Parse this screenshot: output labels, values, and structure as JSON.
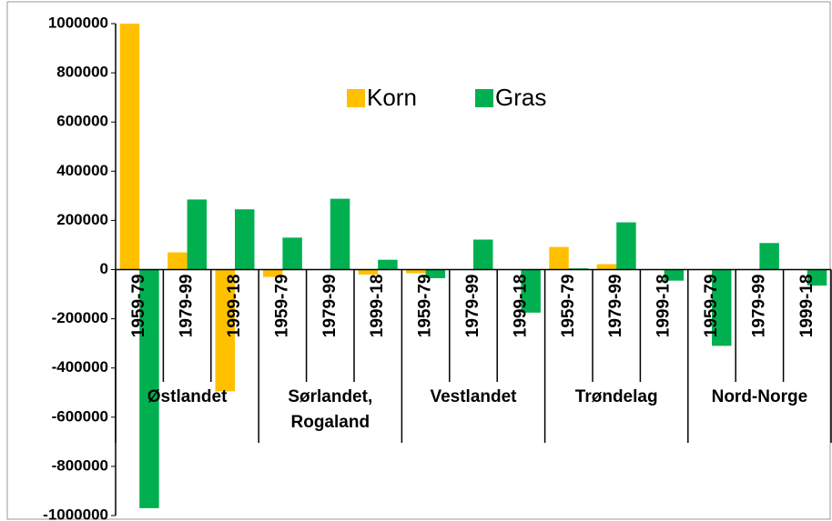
{
  "chart_data": {
    "type": "bar",
    "categories": [
      "1959-79",
      "1979-99",
      "1999-18",
      "1959-79",
      "1979-99",
      "1999-18",
      "1959-79",
      "1979-99",
      "1999-18",
      "1959-79",
      "1979-99",
      "1999-18",
      "1959-79",
      "1979-99",
      "1999-18"
    ],
    "groups": [
      "Østlandet",
      "Sørlandet, Rogaland",
      "Vestlandet",
      "Trøndelag",
      "Nord-Norge"
    ],
    "series": [
      {
        "name": "Korn",
        "color": "#ffc000",
        "values": [
          1000000,
          70000,
          -495000,
          -30000,
          0,
          -20000,
          -15000,
          0,
          0,
          92000,
          22000,
          0,
          0,
          0,
          0
        ]
      },
      {
        "name": "Gras",
        "color": "#00b050",
        "values": [
          -970000,
          285000,
          245000,
          130000,
          288000,
          40000,
          -35000,
          122000,
          -175000,
          5000,
          192000,
          -45000,
          -310000,
          108000,
          -65000
        ]
      }
    ],
    "ylim": [
      -1000000,
      1000000
    ],
    "yticks": [
      -1000000,
      -800000,
      -600000,
      -400000,
      -200000,
      0,
      200000,
      400000,
      600000,
      800000,
      1000000
    ],
    "legend": "top"
  }
}
